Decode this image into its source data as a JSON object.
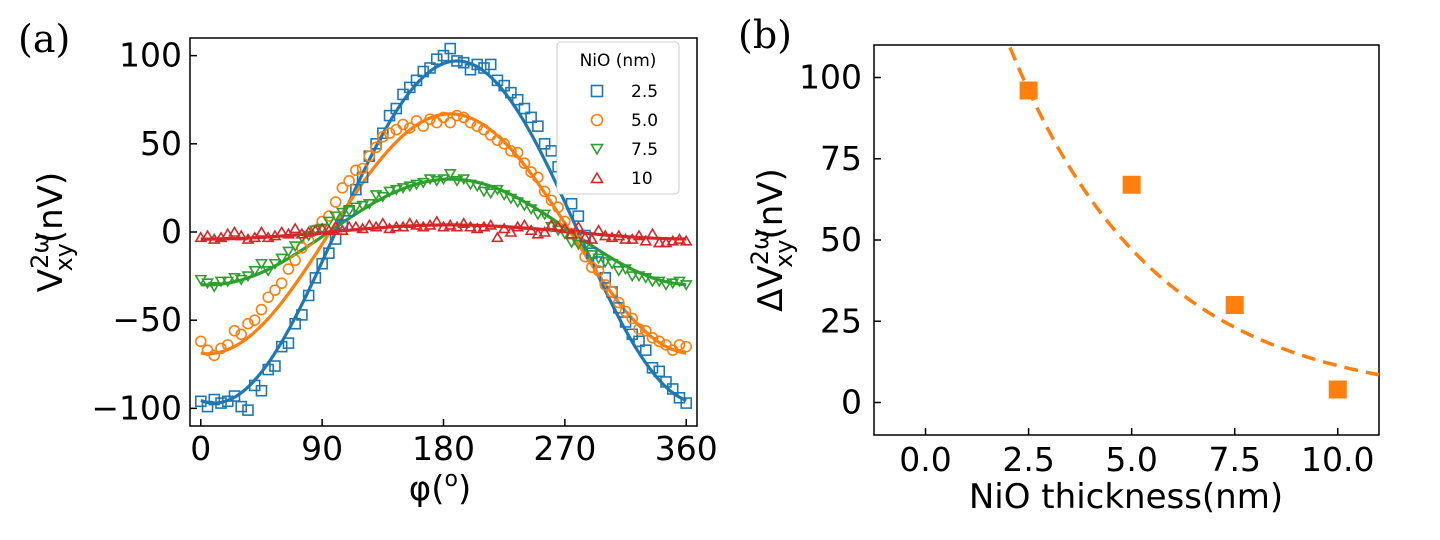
{
  "chart_data": [
    {
      "panel": "(a)",
      "type": "scatter",
      "title": "",
      "xlabel_base": "φ(",
      "xlabel_sup": "o",
      "xlabel_end": ")",
      "ylabel_base": "V",
      "ylabel_sup": "2ω",
      "ylabel_sub": "xy",
      "ylabel_unit": "(nV)",
      "xlim": [
        -8,
        368
      ],
      "ylim": [
        -110,
        110
      ],
      "xticks": [
        0,
        90,
        180,
        270,
        360
      ],
      "xtick_labels": [
        "0",
        "90",
        "180",
        "270",
        "360"
      ],
      "yticks": [
        -100,
        -50,
        0,
        50,
        100
      ],
      "ytick_labels": [
        "−100",
        "−50",
        "0",
        "50",
        "100"
      ],
      "legend_title": "NiO (nm)",
      "legend_position": "top-right",
      "series": [
        {
          "name": "2.5",
          "marker": "square",
          "color": "#1f77b4",
          "amplitude": 97,
          "offset": 0,
          "peak": 190,
          "x": [
            0,
            5,
            10,
            15,
            20,
            25,
            30,
            35,
            40,
            45,
            50,
            55,
            60,
            65,
            70,
            75,
            80,
            85,
            90,
            95,
            100,
            105,
            110,
            115,
            120,
            125,
            130,
            135,
            140,
            145,
            150,
            155,
            160,
            165,
            170,
            175,
            180,
            185,
            190,
            195,
            200,
            205,
            210,
            215,
            220,
            225,
            230,
            235,
            240,
            245,
            250,
            255,
            260,
            265,
            270,
            275,
            280,
            285,
            290,
            295,
            300,
            305,
            310,
            315,
            320,
            325,
            330,
            335,
            340,
            345,
            350,
            355,
            360
          ],
          "values": [
            -96,
            -99,
            -95,
            -97,
            -96,
            -93,
            -99,
            -101,
            -87,
            -90,
            -78,
            -76,
            -65,
            -63,
            -52,
            -47,
            -36,
            -26,
            -18,
            -12,
            -4,
            4,
            12,
            24,
            31,
            43,
            50,
            56,
            66,
            70,
            78,
            82,
            86,
            91,
            93,
            98,
            100,
            104,
            97,
            96,
            92,
            95,
            93,
            95,
            86,
            83,
            79,
            75,
            70,
            65,
            60,
            50,
            46,
            37,
            29,
            16,
            9,
            -2,
            -12,
            -17,
            -26,
            -34,
            -43,
            -51,
            -58,
            -62,
            -67,
            -77,
            -79,
            -85,
            -89,
            -94,
            -97
          ]
        },
        {
          "name": "5.0",
          "marker": "circle",
          "color": "#ff7f0e",
          "amplitude": 68,
          "offset": -1,
          "peak": 185,
          "x": [
            0,
            5,
            10,
            15,
            20,
            25,
            30,
            35,
            40,
            45,
            50,
            55,
            60,
            65,
            70,
            75,
            80,
            85,
            90,
            95,
            100,
            105,
            110,
            115,
            120,
            125,
            130,
            135,
            140,
            145,
            150,
            155,
            160,
            165,
            170,
            175,
            180,
            185,
            190,
            195,
            200,
            205,
            210,
            215,
            220,
            225,
            230,
            235,
            240,
            245,
            250,
            255,
            260,
            265,
            270,
            275,
            280,
            285,
            290,
            295,
            300,
            305,
            310,
            315,
            320,
            325,
            330,
            335,
            340,
            345,
            350,
            355,
            360
          ],
          "values": [
            -62,
            -67,
            -70,
            -66,
            -64,
            -56,
            -58,
            -52,
            -50,
            -44,
            -37,
            -33,
            -29,
            -21,
            -16,
            -9,
            -5,
            1,
            6,
            9,
            17,
            25,
            29,
            35,
            36,
            43,
            48,
            54,
            56,
            58,
            61,
            59,
            63,
            60,
            64,
            62,
            65,
            62,
            66,
            65,
            62,
            60,
            58,
            55,
            52,
            50,
            46,
            45,
            39,
            34,
            31,
            23,
            18,
            14,
            6,
            -1,
            -5,
            -14,
            -20,
            -22,
            -30,
            -34,
            -40,
            -45,
            -49,
            -55,
            -56,
            -60,
            -62,
            -64,
            -67,
            -64,
            -65
          ]
        },
        {
          "name": "7.5",
          "marker": "triangle-down",
          "color": "#2ca02c",
          "amplitude": 30,
          "offset": 0,
          "peak": 185,
          "x": [
            0,
            5,
            10,
            15,
            20,
            25,
            30,
            35,
            40,
            45,
            50,
            55,
            60,
            65,
            70,
            75,
            80,
            85,
            90,
            95,
            100,
            105,
            110,
            115,
            120,
            125,
            130,
            135,
            140,
            145,
            150,
            155,
            160,
            165,
            170,
            175,
            180,
            185,
            190,
            195,
            200,
            205,
            210,
            215,
            220,
            225,
            230,
            235,
            240,
            245,
            250,
            255,
            260,
            265,
            270,
            275,
            280,
            285,
            290,
            295,
            300,
            305,
            310,
            315,
            320,
            325,
            330,
            335,
            340,
            345,
            350,
            355,
            360
          ],
          "values": [
            -27,
            -29,
            -31,
            -28,
            -28,
            -26,
            -27,
            -25,
            -22,
            -18,
            -22,
            -18,
            -15,
            -11,
            -8,
            -3,
            -2,
            1,
            2,
            6,
            9,
            11,
            12,
            14,
            15,
            16,
            21,
            20,
            23,
            24,
            25,
            26,
            27,
            28,
            30,
            29,
            30,
            33,
            29,
            30,
            27,
            26,
            23,
            22,
            24,
            21,
            19,
            17,
            15,
            13,
            10,
            10,
            3,
            1,
            -1,
            -6,
            -7,
            -8,
            -13,
            -15,
            -17,
            -18,
            -22,
            -21,
            -25,
            -25,
            -26,
            -28,
            -28,
            -30,
            -29,
            -28,
            -30
          ]
        },
        {
          "name": "10",
          "marker": "triangle-up",
          "color": "#d62728",
          "amplitude": 4,
          "offset": 0,
          "peak": 185,
          "x": [
            0,
            5,
            10,
            15,
            20,
            25,
            30,
            35,
            40,
            45,
            50,
            55,
            60,
            65,
            70,
            75,
            80,
            85,
            90,
            95,
            100,
            105,
            110,
            115,
            120,
            125,
            130,
            135,
            140,
            145,
            150,
            155,
            160,
            165,
            170,
            175,
            180,
            185,
            190,
            195,
            200,
            205,
            210,
            215,
            220,
            225,
            230,
            235,
            240,
            245,
            250,
            255,
            260,
            265,
            270,
            275,
            280,
            285,
            290,
            295,
            300,
            305,
            310,
            315,
            320,
            325,
            330,
            335,
            340,
            345,
            350,
            355,
            360
          ],
          "values": [
            -3,
            -2,
            -4,
            -3,
            -1,
            0,
            -2,
            -4,
            -3,
            0,
            -3,
            -2,
            0,
            -1,
            2,
            -1,
            0,
            1,
            2,
            1,
            3,
            1,
            3,
            3,
            2,
            4,
            3,
            5,
            2,
            3,
            3,
            5,
            4,
            3,
            4,
            6,
            3,
            4,
            3,
            5,
            3,
            2,
            3,
            4,
            -3,
            2,
            0,
            3,
            4,
            1,
            -1,
            0,
            4,
            3,
            2,
            -1,
            3,
            -3,
            -4,
            1,
            -2,
            -3,
            -2,
            -4,
            -4,
            -2,
            -5,
            -1,
            -6,
            -6,
            -5,
            -4,
            -5
          ]
        }
      ]
    },
    {
      "panel": "(b)",
      "type": "scatter",
      "title": "",
      "xlabel": "NiO thickness(nm)",
      "ylabel_base": "ΔV",
      "ylabel_sup": "2ω",
      "ylabel_sub": "xy",
      "ylabel_unit": "(nV)",
      "xlim": [
        -1.25,
        11
      ],
      "ylim": [
        -10,
        110
      ],
      "xticks": [
        0,
        2.5,
        5,
        7.5,
        10
      ],
      "xtick_labels": [
        "0.0",
        "2.5",
        "5.0",
        "7.5",
        "10.0"
      ],
      "yticks": [
        0,
        25,
        50,
        75,
        100
      ],
      "ytick_labels": [
        "0",
        "25",
        "50",
        "75",
        "100"
      ],
      "points": {
        "x": [
          2.5,
          5.0,
          7.5,
          10.0
        ],
        "values": [
          96,
          67,
          30,
          4
        ],
        "color": "#ff7f0e",
        "marker": "square"
      },
      "fit": {
        "style": "dashed",
        "color": "#ff7f0e",
        "A": 196,
        "k": 0.285,
        "x_start": 2.0,
        "x_end": 11.0
      }
    }
  ]
}
